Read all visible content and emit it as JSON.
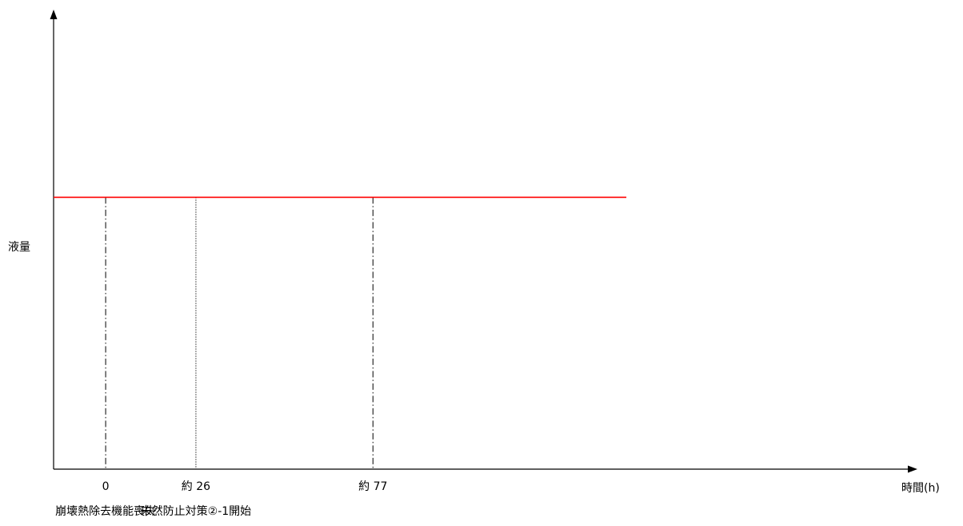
{
  "chart_data": {
    "type": "line",
    "title": "",
    "xlabel": "時間(h)",
    "ylabel": "液量",
    "xlim": [
      -15,
      300
    ],
    "ylim": [
      0,
      1
    ],
    "grid": false,
    "series": [
      {
        "color": "#ff0000",
        "x": [
          -15,
          0,
          26,
          77,
          150
        ],
        "y": [
          0.6,
          0.6,
          0.6,
          0.6,
          0.6
        ]
      }
    ],
    "events": [
      {
        "x": 0,
        "tick_label": "0",
        "annotation": "崩壊熱除去機能喪失",
        "line_style": "dash-dot"
      },
      {
        "x": 26,
        "tick_label": "約 26",
        "annotation": "未然防止対策②-1開始",
        "line_style": "dotted"
      },
      {
        "x": 77,
        "tick_label": "約 77",
        "annotation": "",
        "line_style": "dash-dot"
      }
    ]
  }
}
